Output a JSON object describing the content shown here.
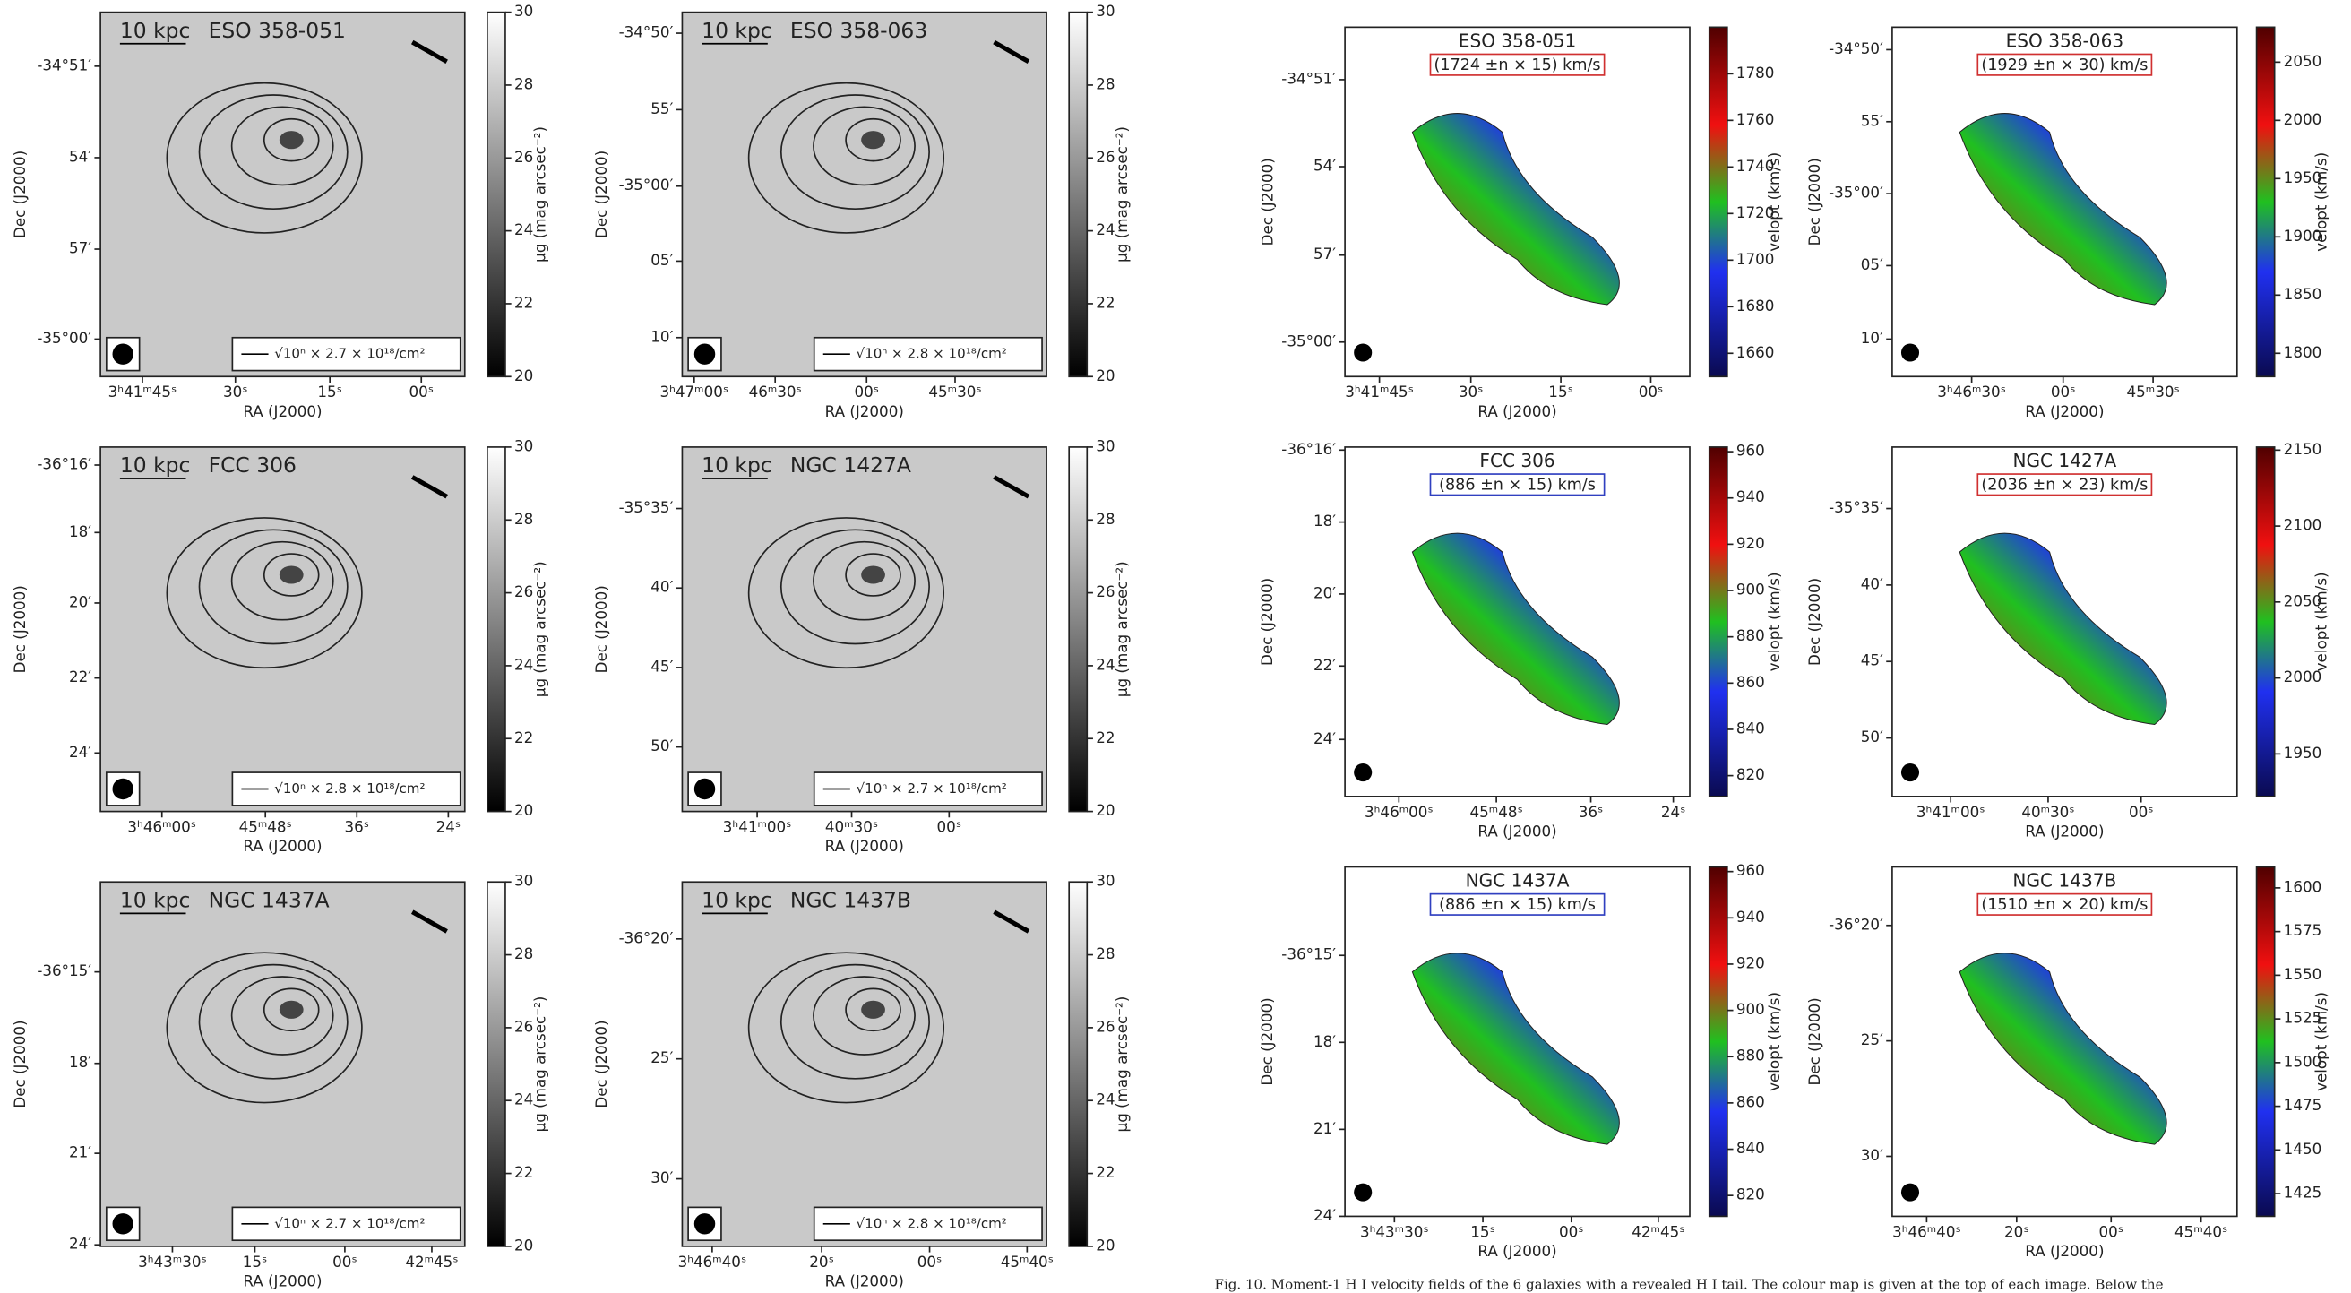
{
  "ra_label": "RA (J2000)",
  "dec_label": "Dec (J2000)",
  "mu_label": "μg (mag arcsec⁻²)",
  "vel_label": "velopt (km/s)",
  "scale_bar": "10 kpc",
  "optical_panels": [
    {
      "name": "ESO 358-051",
      "beam_label": "√10ⁿ × 2.7 × 10¹⁸/cm²",
      "xticks": [
        "3ʰ41ᵐ45ˢ",
        "30ˢ",
        "15ˢ",
        "00ˢ"
      ],
      "yticks": [
        "-34°51′",
        "54′",
        "57′",
        "-35°00′"
      ],
      "cbar_lim": [
        20,
        30
      ],
      "cbar_ticks": [
        20,
        22,
        24,
        26,
        28,
        30
      ]
    },
    {
      "name": "ESO 358-063",
      "beam_label": "√10ⁿ × 2.8 × 10¹⁸/cm²",
      "xticks": [
        "3ʰ47ᵐ00ˢ",
        "46ᵐ30ˢ",
        "00ˢ",
        "45ᵐ30ˢ"
      ],
      "yticks": [
        "-34°50′",
        "55′",
        "-35°00′",
        "05′",
        "10′"
      ],
      "cbar_lim": [
        20,
        30
      ],
      "cbar_ticks": [
        20,
        22,
        24,
        26,
        28,
        30
      ]
    },
    {
      "name": "FCC 306",
      "beam_label": "√10ⁿ × 2.8 × 10¹⁸/cm²",
      "xticks": [
        "3ʰ46ᵐ00ˢ",
        "45ᵐ48ˢ",
        "36ˢ",
        "24ˢ"
      ],
      "yticks": [
        "-36°16′",
        "18′",
        "20′",
        "22′",
        "24′"
      ],
      "cbar_lim": [
        20,
        30
      ],
      "cbar_ticks": [
        20,
        22,
        24,
        26,
        28,
        30
      ]
    },
    {
      "name": "NGC 1427A",
      "beam_label": "√10ⁿ × 2.7 × 10¹⁸/cm²",
      "xticks": [
        "3ʰ41ᵐ00ˢ",
        "40ᵐ30ˢ",
        "00ˢ"
      ],
      "yticks": [
        "-35°35′",
        "40′",
        "45′",
        "50′"
      ],
      "cbar_lim": [
        20,
        30
      ],
      "cbar_ticks": [
        20,
        22,
        24,
        26,
        28,
        30
      ]
    },
    {
      "name": "NGC 1437A",
      "beam_label": "√10ⁿ × 2.7 × 10¹⁸/cm²",
      "xticks": [
        "3ʰ43ᵐ30ˢ",
        "15ˢ",
        "00ˢ",
        "42ᵐ45ˢ"
      ],
      "yticks": [
        "-36°15′",
        "18′",
        "21′",
        "24′"
      ],
      "cbar_lim": [
        20,
        30
      ],
      "cbar_ticks": [
        20,
        22,
        24,
        26,
        28,
        30
      ]
    },
    {
      "name": "NGC 1437B",
      "beam_label": "√10ⁿ × 2.8 × 10¹⁸/cm²",
      "xticks": [
        "3ʰ46ᵐ40ˢ",
        "20ˢ",
        "00ˢ",
        "45ᵐ40ˢ"
      ],
      "yticks": [
        "-36°20′",
        "25′",
        "30′"
      ],
      "cbar_lim": [
        20,
        30
      ],
      "cbar_ticks": [
        20,
        22,
        24,
        26,
        28,
        30
      ]
    }
  ],
  "velocity_panels": [
    {
      "name": "ESO 358-051",
      "systemic": "(1724 ±n × 15) km/s",
      "box_color": "#d03030",
      "xticks": [
        "3ʰ41ᵐ45ˢ",
        "30ˢ",
        "15ˢ",
        "00ˢ"
      ],
      "yticks": [
        "-34°51′",
        "54′",
        "57′",
        "-35°00′"
      ],
      "cbar_lim": [
        1650,
        1800
      ],
      "cbar_ticks": [
        1660,
        1680,
        1700,
        1720,
        1740,
        1760,
        1780
      ]
    },
    {
      "name": "ESO 358-063",
      "systemic": "(1929 ±n × 30) km/s",
      "box_color": "#d03030",
      "xticks": [
        "3ʰ46ᵐ30ˢ",
        "00ˢ",
        "45ᵐ30ˢ"
      ],
      "yticks": [
        "-34°50′",
        "55′",
        "-35°00′",
        "05′",
        "10′"
      ],
      "cbar_lim": [
        1780,
        2080
      ],
      "cbar_ticks": [
        1800,
        1850,
        1900,
        1950,
        2000,
        2050
      ]
    },
    {
      "name": "FCC 306",
      "systemic": "(886 ±n × 15) km/s",
      "box_color": "#3040c0",
      "xticks": [
        "3ʰ46ᵐ00ˢ",
        "45ᵐ48ˢ",
        "36ˢ",
        "24ˢ"
      ],
      "yticks": [
        "-36°16′",
        "18′",
        "20′",
        "22′",
        "24′"
      ],
      "cbar_lim": [
        811,
        962
      ],
      "cbar_ticks": [
        820,
        840,
        860,
        880,
        900,
        920,
        940,
        960
      ]
    },
    {
      "name": "NGC 1427A",
      "systemic": "(2036 ±n × 23) km/s",
      "box_color": "#d03030",
      "xticks": [
        "3ʰ41ᵐ00ˢ",
        "40ᵐ30ˢ",
        "00ˢ"
      ],
      "yticks": [
        "-35°35′",
        "40′",
        "45′",
        "50′"
      ],
      "cbar_lim": [
        1922,
        2152
      ],
      "cbar_ticks": [
        1950,
        2000,
        2050,
        2100,
        2150
      ]
    },
    {
      "name": "NGC 1437A",
      "systemic": "(886 ±n × 15) km/s",
      "box_color": "#3040c0",
      "xticks": [
        "3ʰ43ᵐ30ˢ",
        "15ˢ",
        "00ˢ",
        "42ᵐ45ˢ"
      ],
      "yticks": [
        "-36°15′",
        "18′",
        "21′",
        "24′"
      ],
      "cbar_lim": [
        811,
        962
      ],
      "cbar_ticks": [
        820,
        840,
        860,
        880,
        900,
        920,
        940,
        960
      ]
    },
    {
      "name": "NGC 1437B",
      "systemic": "(1510 ±n × 20) km/s",
      "box_color": "#d03030",
      "xticks": [
        "3ʰ46ᵐ40ˢ",
        "20ˢ",
        "00ˢ",
        "45ᵐ40ˢ"
      ],
      "yticks": [
        "-36°20′",
        "25′",
        "30′"
      ],
      "cbar_lim": [
        1412,
        1612
      ],
      "cbar_ticks": [
        1425,
        1450,
        1475,
        1500,
        1525,
        1550,
        1575,
        1600
      ]
    }
  ],
  "caption": "Fig. 10. Moment-1 H I velocity fields of the 6 galaxies with a revealed H I tail. The colour map is given at the top of each image. Below the"
}
